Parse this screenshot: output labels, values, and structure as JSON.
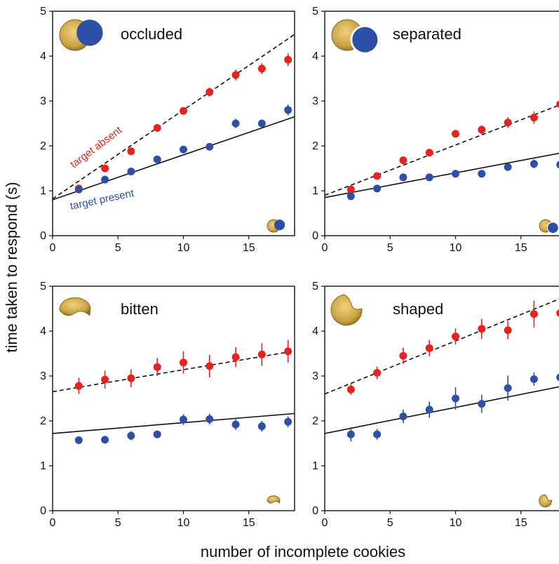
{
  "figure": {
    "ylabel": "time taken to respond (s)",
    "xlabel": "number of incomplete cookies"
  },
  "colors": {
    "absent": "#e8231f",
    "present": "#2e4fa6",
    "fit": "#111111",
    "cookie": "#c9a344",
    "cookie_dark": "#8a6a25"
  },
  "chart_data": [
    {
      "type": "scatter",
      "title": "occluded",
      "xlim": [
        0,
        18.5
      ],
      "ylim": [
        0,
        5
      ],
      "xticks": [
        0,
        5,
        10,
        15
      ],
      "yticks": [
        0,
        1,
        2,
        3,
        4,
        5
      ],
      "icon": "occluded-cookie-icon",
      "series": [
        {
          "name": "target absent",
          "color": "#e8231f",
          "x": [
            2,
            4,
            6,
            8,
            10,
            12,
            14,
            16,
            18
          ],
          "y": [
            1.05,
            1.5,
            1.88,
            2.4,
            2.78,
            3.2,
            3.58,
            3.72,
            3.92
          ],
          "err": [
            0.05,
            0.06,
            0.06,
            0.07,
            0.08,
            0.1,
            0.12,
            0.12,
            0.14
          ]
        },
        {
          "name": "target present",
          "color": "#2e4fa6",
          "x": [
            2,
            4,
            6,
            8,
            10,
            12,
            14,
            16,
            18
          ],
          "y": [
            1.03,
            1.25,
            1.43,
            1.7,
            1.92,
            1.98,
            2.5,
            2.5,
            2.8
          ],
          "err": [
            0.04,
            0.05,
            0.05,
            0.06,
            0.06,
            0.06,
            0.1,
            0.08,
            0.12
          ]
        }
      ],
      "fits": [
        {
          "series": "target absent",
          "style": "dashed",
          "intercept": 0.82,
          "slope": 0.198
        },
        {
          "series": "target present",
          "style": "solid",
          "intercept": 0.8,
          "slope": 0.1
        }
      ],
      "annotations": [
        {
          "text": "target absent",
          "color": "#e8231f"
        },
        {
          "text": "target present",
          "color": "#2e4fa6"
        }
      ]
    },
    {
      "type": "scatter",
      "title": "separated",
      "xlim": [
        0,
        18.5
      ],
      "ylim": [
        0,
        5
      ],
      "xticks": [
        0,
        5,
        10,
        15
      ],
      "yticks": [
        0,
        1,
        2,
        3,
        4,
        5
      ],
      "icon": "separated-cookie-icon",
      "series": [
        {
          "name": "target absent",
          "color": "#e8231f",
          "x": [
            2,
            4,
            6,
            8,
            10,
            12,
            14,
            16,
            18
          ],
          "y": [
            1.03,
            1.33,
            1.68,
            1.85,
            2.27,
            2.36,
            2.52,
            2.63,
            2.93
          ],
          "err": [
            0.05,
            0.06,
            0.07,
            0.07,
            0.08,
            0.1,
            0.12,
            0.14,
            0.2
          ]
        },
        {
          "name": "target present",
          "color": "#2e4fa6",
          "x": [
            2,
            4,
            6,
            8,
            10,
            12,
            14,
            16,
            18
          ],
          "y": [
            0.88,
            1.05,
            1.3,
            1.3,
            1.38,
            1.38,
            1.53,
            1.6,
            1.58
          ],
          "err": [
            0.05,
            0.05,
            0.06,
            0.06,
            0.06,
            0.06,
            0.07,
            0.1,
            0.12
          ]
        }
      ],
      "fits": [
        {
          "series": "target absent",
          "style": "dashed",
          "intercept": 0.9,
          "slope": 0.112
        },
        {
          "series": "target present",
          "style": "solid",
          "intercept": 0.85,
          "slope": 0.055
        }
      ]
    },
    {
      "type": "scatter",
      "title": "bitten",
      "xlim": [
        0,
        18.5
      ],
      "ylim": [
        0,
        5
      ],
      "xticks": [
        0,
        5,
        10,
        15
      ],
      "yticks": [
        0,
        1,
        2,
        3,
        4,
        5
      ],
      "icon": "bitten-cookie-icon",
      "series": [
        {
          "name": "target absent",
          "color": "#e8231f",
          "x": [
            2,
            4,
            6,
            8,
            10,
            12,
            14,
            16,
            18
          ],
          "y": [
            2.78,
            2.92,
            2.95,
            3.2,
            3.3,
            3.22,
            3.42,
            3.48,
            3.55
          ],
          "err": [
            0.18,
            0.2,
            0.2,
            0.2,
            0.25,
            0.25,
            0.22,
            0.25,
            0.25
          ]
        },
        {
          "name": "target present",
          "color": "#2e4fa6",
          "x": [
            2,
            4,
            6,
            8,
            10,
            12,
            14,
            16,
            18
          ],
          "y": [
            1.57,
            1.58,
            1.67,
            1.7,
            2.03,
            2.04,
            1.92,
            1.88,
            1.98
          ],
          "err": [
            0.05,
            0.05,
            0.1,
            0.06,
            0.12,
            0.12,
            0.12,
            0.12,
            0.12
          ]
        }
      ],
      "fits": [
        {
          "series": "target absent",
          "style": "dashed",
          "intercept": 2.65,
          "slope": 0.049
        },
        {
          "series": "target present",
          "style": "solid",
          "intercept": 1.72,
          "slope": 0.024
        }
      ]
    },
    {
      "type": "scatter",
      "title": "shaped",
      "xlim": [
        0,
        18.5
      ],
      "ylim": [
        0,
        5
      ],
      "xticks": [
        0,
        5,
        10,
        15
      ],
      "yticks": [
        0,
        1,
        2,
        3,
        4,
        5
      ],
      "icon": "shaped-cookie-icon",
      "series": [
        {
          "name": "target absent",
          "color": "#e8231f",
          "x": [
            2,
            4,
            6,
            8,
            10,
            12,
            14,
            16,
            18
          ],
          "y": [
            2.7,
            3.07,
            3.45,
            3.62,
            3.88,
            4.05,
            4.02,
            4.38,
            4.4
          ],
          "err": [
            0.12,
            0.14,
            0.18,
            0.18,
            0.18,
            0.22,
            0.2,
            0.3,
            0.3
          ]
        },
        {
          "name": "target present",
          "color": "#2e4fa6",
          "x": [
            2,
            4,
            6,
            8,
            10,
            12,
            14,
            16,
            18
          ],
          "y": [
            1.7,
            1.7,
            2.1,
            2.25,
            2.5,
            2.38,
            2.73,
            2.93,
            2.97
          ],
          "err": [
            0.16,
            0.12,
            0.15,
            0.18,
            0.25,
            0.2,
            0.28,
            0.15,
            0.3
          ]
        }
      ],
      "fits": [
        {
          "series": "target absent",
          "style": "dashed",
          "intercept": 2.6,
          "slope": 0.118
        },
        {
          "series": "target present",
          "style": "solid",
          "intercept": 1.72,
          "slope": 0.058
        }
      ]
    }
  ]
}
